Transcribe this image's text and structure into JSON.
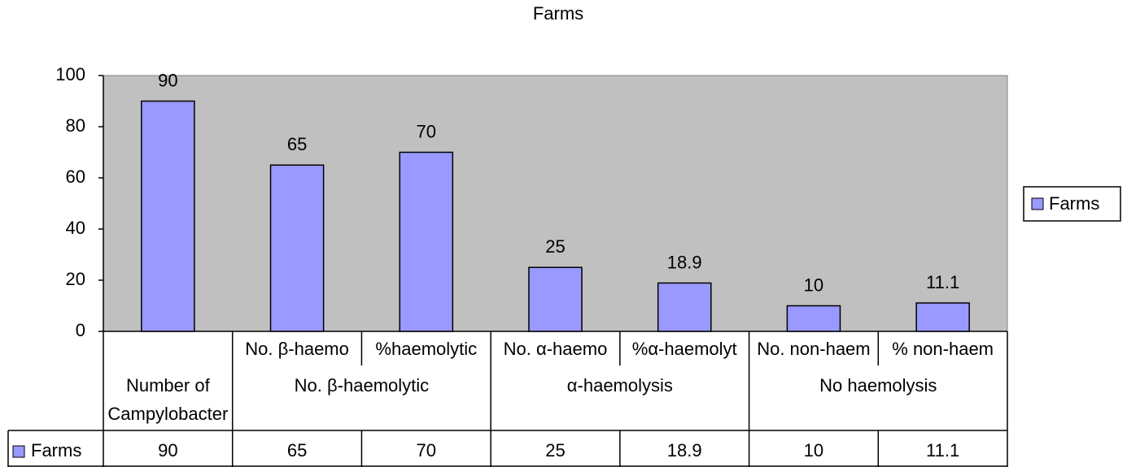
{
  "chart_data": {
    "type": "bar",
    "title": "Farms",
    "categories": [
      null,
      "No. β-haemo",
      "%haemolytic",
      "No. α-haemo",
      "%α-haemolyt",
      "No. non-haem",
      "% non-haem"
    ],
    "category_groups": [
      {
        "label": "Number of Campylobacter",
        "span": 1
      },
      {
        "label": "No. β-haemolytic",
        "span": 2
      },
      {
        "label": "α-haemolysis",
        "span": 2
      },
      {
        "label": "No haemolysis",
        "span": 2
      }
    ],
    "series": [
      {
        "name": "Farms",
        "color": "#9999ff",
        "values": [
          90,
          65,
          70,
          25,
          18.9,
          10,
          11.1
        ]
      }
    ],
    "ylim": [
      0,
      100
    ],
    "yticks": [
      0,
      20,
      40,
      60,
      80,
      100
    ],
    "grid": false,
    "legend": "right",
    "data_table": true
  }
}
